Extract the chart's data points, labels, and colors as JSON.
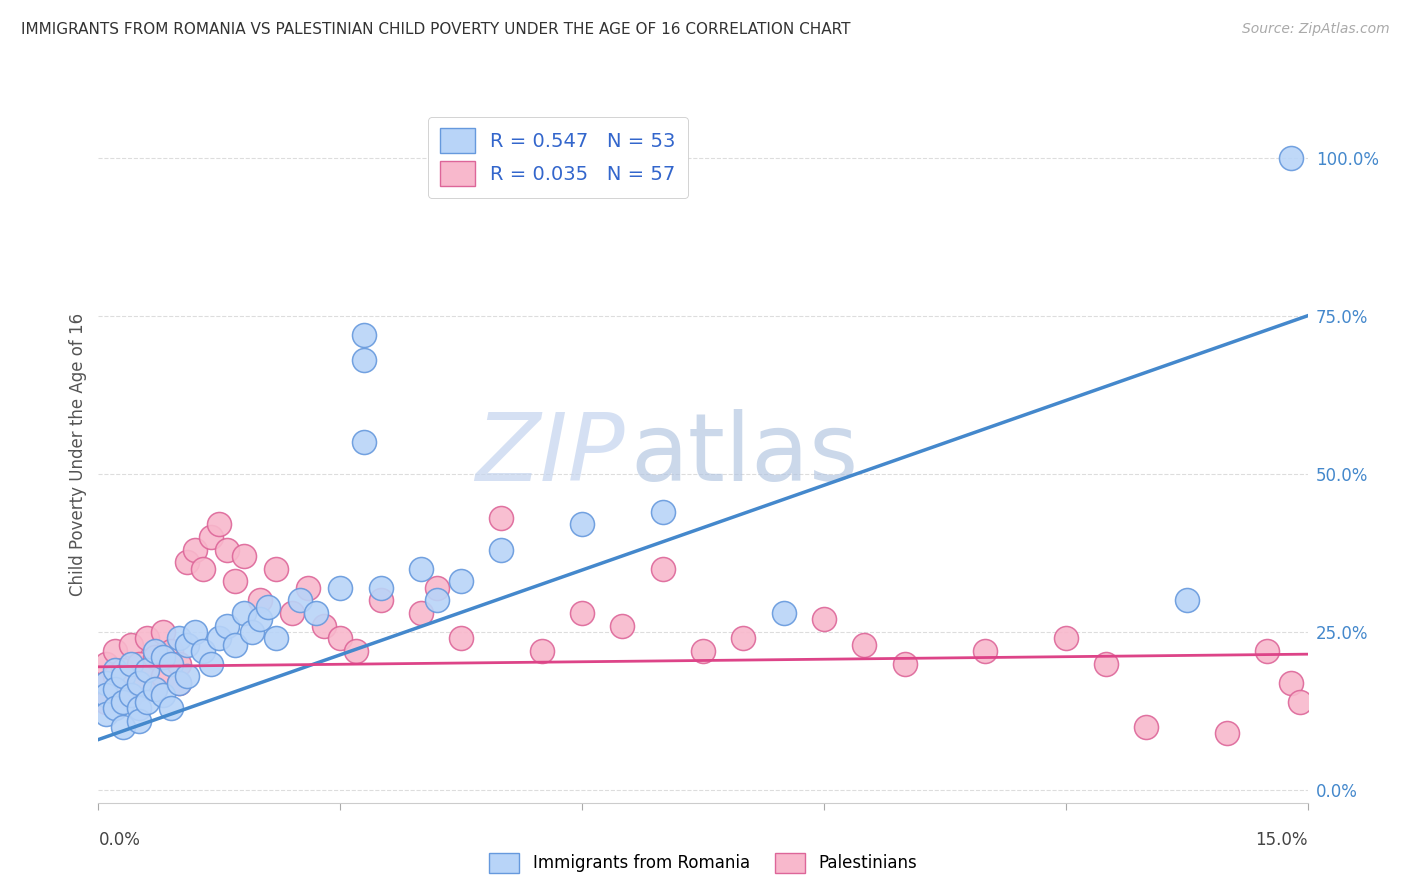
{
  "title": "IMMIGRANTS FROM ROMANIA VS PALESTINIAN CHILD POVERTY UNDER THE AGE OF 16 CORRELATION CHART",
  "source": "Source: ZipAtlas.com",
  "ylabel": "Child Poverty Under the Age of 16",
  "right_ytick_labels": [
    "0.0%",
    "25.0%",
    "50.0%",
    "75.0%",
    "100.0%"
  ],
  "right_ytick_vals": [
    0.0,
    0.25,
    0.5,
    0.75,
    1.0
  ],
  "xmin": 0.0,
  "xmax": 0.15,
  "ymin": -0.02,
  "ymax": 1.08,
  "romania_R": "0.547",
  "romania_N": "53",
  "palestine_R": "0.035",
  "palestine_N": "57",
  "romania_scatter_color": "#b8d4f8",
  "romania_edge_color": "#6699dd",
  "palestine_scatter_color": "#f8b8cc",
  "palestine_edge_color": "#dd6699",
  "romania_line_color": "#4488cc",
  "palestine_line_color": "#dd4488",
  "watermark_zip_color": "#c8d8f0",
  "watermark_atlas_color": "#b8c8e8",
  "legend_category_romania": "Immigrants from Romania",
  "legend_category_palestine": "Palestinians",
  "bg_color": "#ffffff",
  "grid_color": "#dddddd",
  "title_color": "#333333",
  "source_color": "#aaaaaa",
  "axis_label_color": "#555555",
  "right_axis_color": "#4488cc",
  "romania_trend_x0": 0.0,
  "romania_trend_y0": 0.08,
  "romania_trend_x1": 0.15,
  "romania_trend_y1": 0.75,
  "palestine_trend_x0": 0.0,
  "palestine_trend_y0": 0.195,
  "palestine_trend_x1": 0.15,
  "palestine_trend_y1": 0.215,
  "romania_x": [
    0.001,
    0.001,
    0.001,
    0.002,
    0.002,
    0.002,
    0.003,
    0.003,
    0.003,
    0.004,
    0.004,
    0.005,
    0.005,
    0.005,
    0.006,
    0.006,
    0.007,
    0.007,
    0.008,
    0.008,
    0.009,
    0.009,
    0.01,
    0.01,
    0.011,
    0.011,
    0.012,
    0.013,
    0.014,
    0.015,
    0.016,
    0.017,
    0.018,
    0.019,
    0.02,
    0.021,
    0.022,
    0.025,
    0.027,
    0.03,
    0.033,
    0.033,
    0.033,
    0.035,
    0.04,
    0.042,
    0.045,
    0.05,
    0.06,
    0.07,
    0.085,
    0.135,
    0.148
  ],
  "romania_y": [
    0.17,
    0.15,
    0.12,
    0.19,
    0.16,
    0.13,
    0.18,
    0.14,
    0.1,
    0.2,
    0.15,
    0.17,
    0.13,
    0.11,
    0.19,
    0.14,
    0.22,
    0.16,
    0.21,
    0.15,
    0.2,
    0.13,
    0.24,
    0.17,
    0.23,
    0.18,
    0.25,
    0.22,
    0.2,
    0.24,
    0.26,
    0.23,
    0.28,
    0.25,
    0.27,
    0.29,
    0.24,
    0.3,
    0.28,
    0.32,
    0.72,
    0.68,
    0.55,
    0.32,
    0.35,
    0.3,
    0.33,
    0.38,
    0.42,
    0.44,
    0.28,
    0.3,
    1.0
  ],
  "palestine_x": [
    0.001,
    0.001,
    0.001,
    0.002,
    0.002,
    0.003,
    0.003,
    0.004,
    0.004,
    0.005,
    0.005,
    0.006,
    0.006,
    0.007,
    0.007,
    0.008,
    0.008,
    0.009,
    0.01,
    0.01,
    0.011,
    0.012,
    0.013,
    0.014,
    0.015,
    0.016,
    0.017,
    0.018,
    0.02,
    0.022,
    0.024,
    0.026,
    0.028,
    0.03,
    0.032,
    0.035,
    0.04,
    0.042,
    0.045,
    0.05,
    0.055,
    0.06,
    0.065,
    0.07,
    0.075,
    0.08,
    0.09,
    0.095,
    0.1,
    0.11,
    0.12,
    0.125,
    0.13,
    0.14,
    0.145,
    0.148,
    0.149
  ],
  "palestine_y": [
    0.2,
    0.17,
    0.14,
    0.22,
    0.18,
    0.19,
    0.15,
    0.23,
    0.17,
    0.2,
    0.16,
    0.24,
    0.19,
    0.21,
    0.16,
    0.25,
    0.18,
    0.22,
    0.2,
    0.17,
    0.36,
    0.38,
    0.35,
    0.4,
    0.42,
    0.38,
    0.33,
    0.37,
    0.3,
    0.35,
    0.28,
    0.32,
    0.26,
    0.24,
    0.22,
    0.3,
    0.28,
    0.32,
    0.24,
    0.43,
    0.22,
    0.28,
    0.26,
    0.35,
    0.22,
    0.24,
    0.27,
    0.23,
    0.2,
    0.22,
    0.24,
    0.2,
    0.1,
    0.09,
    0.22,
    0.17,
    0.14
  ]
}
